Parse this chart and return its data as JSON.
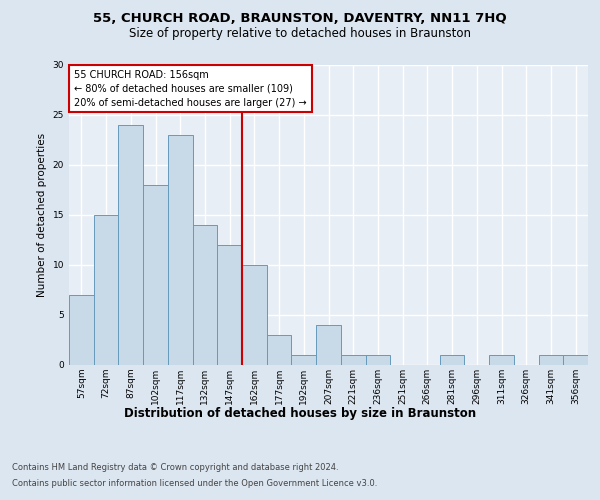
{
  "title1": "55, CHURCH ROAD, BRAUNSTON, DAVENTRY, NN11 7HQ",
  "title2": "Size of property relative to detached houses in Braunston",
  "xlabel": "Distribution of detached houses by size in Braunston",
  "ylabel": "Number of detached properties",
  "categories": [
    "57sqm",
    "72sqm",
    "87sqm",
    "102sqm",
    "117sqm",
    "132sqm",
    "147sqm",
    "162sqm",
    "177sqm",
    "192sqm",
    "207sqm",
    "221sqm",
    "236sqm",
    "251sqm",
    "266sqm",
    "281sqm",
    "296sqm",
    "311sqm",
    "326sqm",
    "341sqm",
    "356sqm"
  ],
  "values": [
    7,
    15,
    24,
    18,
    23,
    14,
    12,
    10,
    3,
    1,
    4,
    1,
    1,
    0,
    0,
    1,
    0,
    1,
    0,
    1,
    1
  ],
  "bar_color": "#c8d9e8",
  "bar_edge_color": "#6699bb",
  "reference_line_idx": 7,
  "reference_line_label": "55 CHURCH ROAD: 156sqm",
  "annotation_line1": "← 80% of detached houses are smaller (109)",
  "annotation_line2": "20% of semi-detached houses are larger (27) →",
  "ylim": [
    0,
    30
  ],
  "yticks": [
    0,
    5,
    10,
    15,
    20,
    25,
    30
  ],
  "footer1": "Contains HM Land Registry data © Crown copyright and database right 2024.",
  "footer2": "Contains public sector information licensed under the Open Government Licence v3.0.",
  "background_color": "#dce6f0",
  "plot_bg_color": "#e8eef6",
  "grid_color": "#ffffff",
  "box_edge_color": "#cc0000",
  "ref_line_color": "#cc0000",
  "title1_fontsize": 9.5,
  "title2_fontsize": 8.5,
  "ylabel_fontsize": 7.5,
  "xlabel_fontsize": 8.5,
  "tick_fontsize": 6.5,
  "footer_fontsize": 6.0
}
